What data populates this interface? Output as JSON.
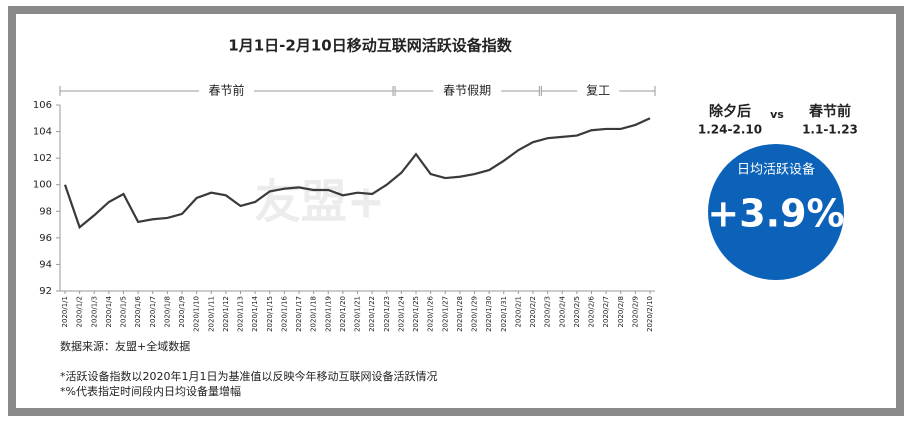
{
  "chart_data": {
    "type": "line",
    "title": "1月1日-2月10日移动互联网活跃设备指数",
    "categories": [
      "2020/1/1",
      "2020/1/2",
      "2020/1/3",
      "2020/1/4",
      "2020/1/5",
      "2020/1/6",
      "2020/1/7",
      "2020/1/8",
      "2020/1/9",
      "2020/1/10",
      "2020/1/11",
      "2020/1/12",
      "2020/1/13",
      "2020/1/14",
      "2020/1/15",
      "2020/1/16",
      "2020/1/17",
      "2020/1/18",
      "2020/1/19",
      "2020/1/20",
      "2020/1/21",
      "2020/1/22",
      "2020/1/23",
      "2020/1/24",
      "2020/1/25",
      "2020/1/26",
      "2020/1/27",
      "2020/1/28",
      "2020/1/29",
      "2020/1/30",
      "2020/1/31",
      "2020/2/1",
      "2020/2/2",
      "2020/2/3",
      "2020/2/4",
      "2020/2/5",
      "2020/2/6",
      "2020/2/7",
      "2020/2/8",
      "2020/2/9",
      "2020/2/10"
    ],
    "values": [
      100,
      96.8,
      97.7,
      98.7,
      99.3,
      97.2,
      97.4,
      97.5,
      97.8,
      99.0,
      99.4,
      99.2,
      98.4,
      98.7,
      99.5,
      99.7,
      99.8,
      99.6,
      99.6,
      99.2,
      99.4,
      99.3,
      100.0,
      100.9,
      102.3,
      100.8,
      100.5,
      100.6,
      100.8,
      101.1,
      101.8,
      102.6,
      103.2,
      103.5,
      103.6,
      103.7,
      104.1,
      104.2,
      104.2,
      104.5,
      105.0
    ],
    "color": "#3a3a3a",
    "ylim": [
      92,
      106
    ],
    "yticks": [
      92,
      94,
      96,
      98,
      100,
      102,
      104,
      106
    ],
    "periods": [
      {
        "label": "春节前",
        "from": "2020/1/1",
        "to": "2020/1/23"
      },
      {
        "label": "春节假期",
        "from": "2020/1/24",
        "to": "2020/2/2"
      },
      {
        "label": "复工",
        "from": "2020/2/3",
        "to": "2020/2/10"
      }
    ],
    "watermark": "友盟+"
  },
  "summary": {
    "left": "除夕后",
    "vs": "vs",
    "right": "春节前",
    "left_range": "1.24-2.10",
    "right_range": "1.1-1.23",
    "metric": "日均活跃设备",
    "value": 3.9,
    "value_label": "+3.9%",
    "color": "#0b62b8"
  },
  "source": "数据来源：友盟+全域数据",
  "notes": [
    "*活跃设备指数以2020年1月1日为基准值以反映今年移动互联网设备活跃情况",
    "*%代表指定时间段内日均设备量增幅"
  ]
}
